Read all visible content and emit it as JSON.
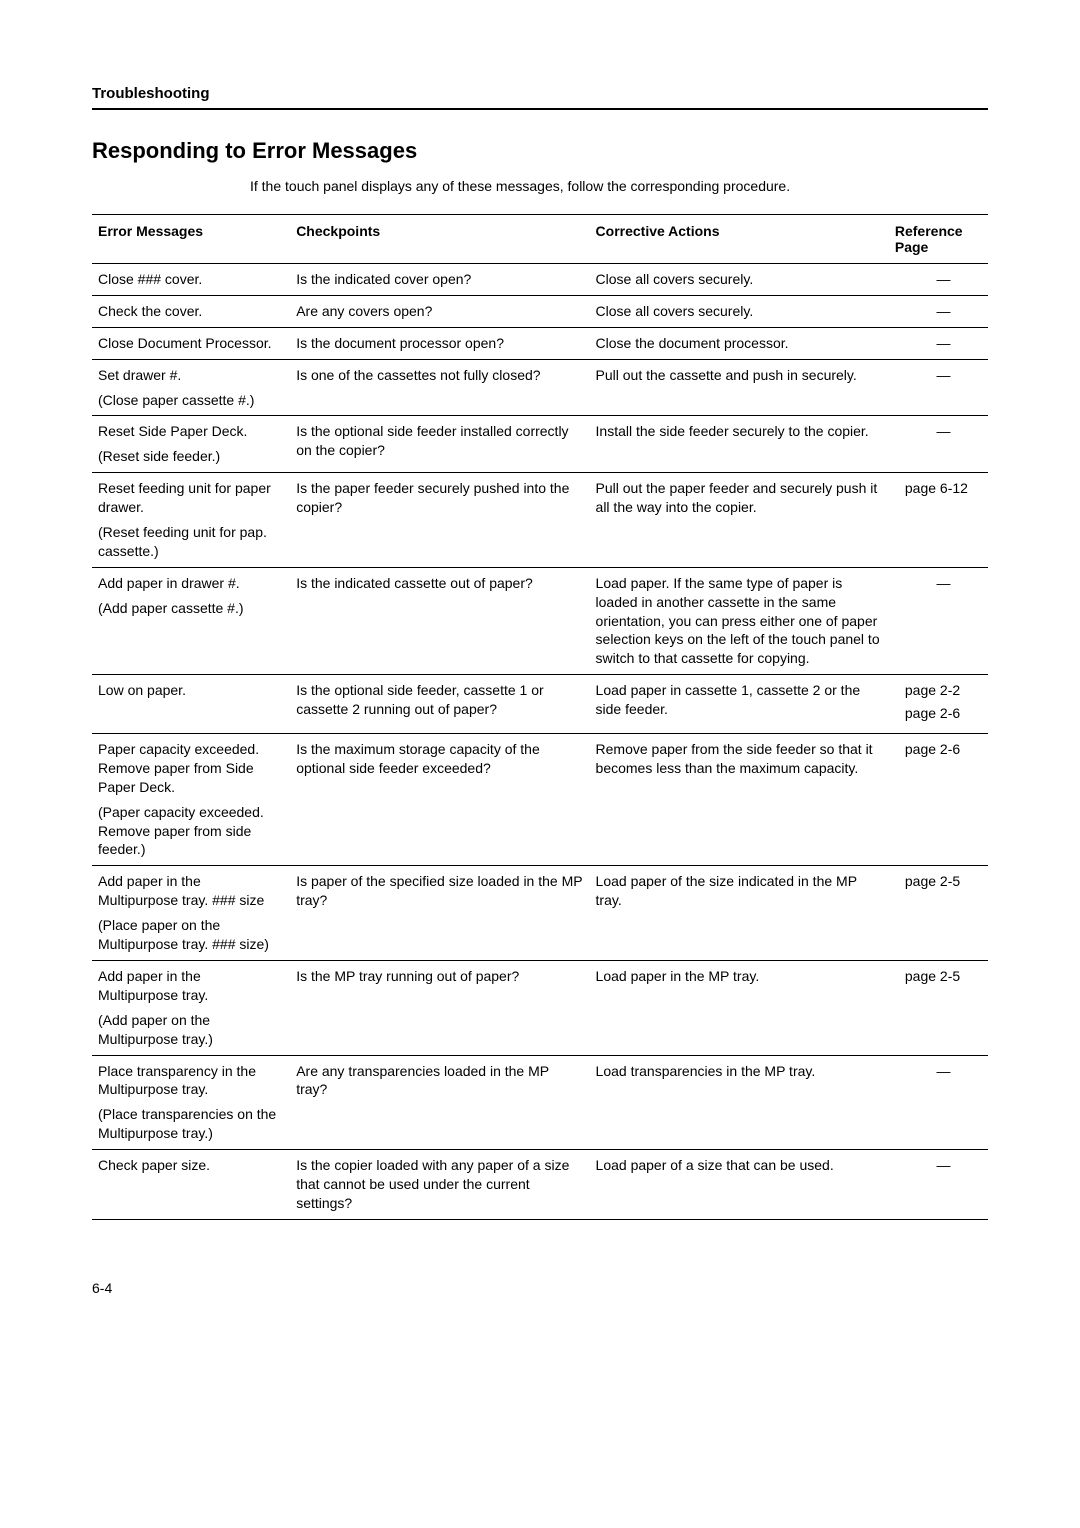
{
  "header": {
    "section": "Troubleshooting"
  },
  "title": "Responding to Error Messages",
  "intro": "If the touch panel displays any of these messages, follow the corresponding procedure.",
  "columns": {
    "messages": "Error Messages",
    "checkpoints": "Checkpoints",
    "actions": "Corrective Actions",
    "reference": "Reference Page"
  },
  "rows": [
    {
      "msg": "Close ### cover.",
      "chk": "Is the indicated cover open?",
      "act": "Close all covers securely.",
      "ref": "—"
    },
    {
      "msg": "Check the cover.",
      "chk": "Are any covers open?",
      "act": "Close all covers securely.",
      "ref": "—"
    },
    {
      "msg": "Close Document Processor.",
      "chk": "Is the document processor open?",
      "act": "Close the document processor.",
      "ref": "—"
    },
    {
      "msg": "Set drawer #.",
      "msg2": "(Close paper cassette #.)",
      "chk": "Is one of the cassettes not fully closed?",
      "act": "Pull out the cassette and push in securely.",
      "ref": "—"
    },
    {
      "msg": "Reset Side Paper Deck.",
      "msg2": "(Reset side feeder.)",
      "chk": "Is the optional side feeder installed correctly on the copier?",
      "act": "Install the side feeder securely to the copier.",
      "ref": "—"
    },
    {
      "msg": "Reset feeding unit for paper drawer.",
      "msg2": "(Reset feeding unit for pap. cassette.)",
      "chk": "Is the paper feeder securely pushed into the copier?",
      "act": "Pull out the paper feeder and securely push it all the way into the copier.",
      "ref": "page 6-12"
    },
    {
      "msg": "Add paper in drawer #.",
      "msg2": "(Add paper cassette #.)",
      "chk": "Is the indicated cassette out of paper?",
      "act": "Load paper. If the same type of paper is loaded in another cassette in the same orientation, you can press either one of paper selection keys on the left of the touch panel to switch to that cassette for copying.",
      "ref": "—"
    },
    {
      "msg": "Low on paper.",
      "chk": "Is the optional side feeder, cassette 1 or cassette 2 running out of paper?",
      "act": "Load paper in cassette 1, cassette 2 or the side feeder.",
      "ref": "page 2-2",
      "ref2": "page 2-6"
    },
    {
      "msg": "Paper capacity exceeded. Remove paper from Side Paper Deck.",
      "msg2": "(Paper capacity exceeded. Remove paper from side feeder.)",
      "chk": "Is the maximum storage capacity of the optional side feeder exceeded?",
      "act": "Remove paper from the side feeder so that it becomes less than the maximum capacity.",
      "ref": "page 2-6"
    },
    {
      "msg": "Add paper in the Multipurpose tray. ### size",
      "msg2": "(Place paper on the Multipurpose tray. ### size)",
      "chk": "Is paper of the specified size loaded in the MP tray?",
      "act": "Load paper of the size indicated in the MP tray.",
      "ref": "page 2-5"
    },
    {
      "msg": "Add paper in the Multipurpose tray.",
      "msg2": "(Add paper on the Multipurpose tray.)",
      "chk": "Is the MP tray running out of paper?",
      "act": "Load paper in the MP tray.",
      "ref": "page 2-5"
    },
    {
      "msg": "Place transparency in the Multipurpose tray.",
      "msg2": "(Place transparencies on the Multipurpose tray.)",
      "chk": "Are any transparencies loaded in the MP tray?",
      "act": "Load transparencies in the MP tray.",
      "ref": "—"
    },
    {
      "msg": "Check paper size.",
      "chk": "Is the copier loaded with any paper of a size that cannot be used under the current settings?",
      "act": "Load paper of a size that can be used.",
      "ref": "—"
    }
  ],
  "pageNumber": "6-4"
}
